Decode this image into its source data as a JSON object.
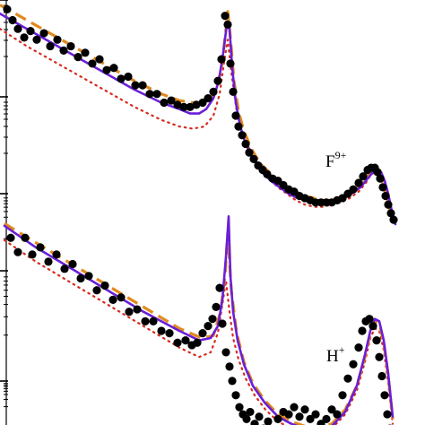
{
  "chart_data": [
    {
      "type": "line",
      "title": "",
      "xlabel": "",
      "ylabel": "",
      "yscale": "log",
      "xlim": [
        0,
        474
      ],
      "ylim": [
        0,
        100
      ],
      "grid": false,
      "annotations": [
        {
          "text": "F",
          "sup": "9+"
        }
      ],
      "series": [
        {
          "style": "dots",
          "color": "#000000",
          "x": [
            8,
            14,
            20,
            27,
            34,
            41,
            49,
            56,
            64,
            71,
            79,
            87,
            95,
            103,
            111,
            119,
            127,
            135,
            143,
            151,
            159,
            167,
            175,
            183,
            191,
            198,
            205,
            212,
            219,
            226,
            232,
            238,
            243,
            247,
            251,
            254,
            257,
            260,
            263,
            266,
            270,
            274,
            278,
            283,
            288,
            293,
            298,
            304,
            310,
            316,
            322,
            328,
            334,
            340,
            346,
            352,
            358,
            364,
            370,
            376,
            382,
            388,
            394,
            400,
            405,
            410,
            414,
            418,
            421,
            424,
            427,
            430,
            433,
            436,
            439
          ],
          "y": [
            99,
            94,
            90,
            86,
            89,
            85,
            88,
            82,
            85,
            80,
            82,
            77,
            79,
            74,
            76,
            71,
            72,
            67,
            68,
            64,
            64,
            60,
            60,
            56,
            57,
            55,
            54,
            54,
            55,
            56,
            58,
            61,
            66,
            76,
            96,
            92,
            74,
            61,
            50,
            45,
            41,
            37,
            33,
            30,
            27,
            25,
            23,
            21,
            20,
            18,
            16,
            15,
            13,
            12,
            11,
            10,
            10,
            10,
            10,
            11,
            12,
            14,
            16,
            19,
            22,
            25,
            26,
            26,
            24,
            21,
            17,
            13,
            9,
            5,
            2
          ]
        },
        {
          "style": "dashed",
          "color": "#e08a1e",
          "x": [
            0,
            30,
            60,
            90,
            120,
            150,
            180,
            200,
            215,
            225,
            235,
            242,
            247,
            251,
            254,
            257,
            261,
            266,
            272,
            280,
            290,
            300,
            310,
            320,
            330,
            340,
            350,
            360,
            370,
            380,
            390,
            400,
            408,
            414,
            419,
            424,
            429,
            434,
            439
          ],
          "y": [
            101,
            94,
            87,
            80,
            73,
            66,
            60,
            57,
            56,
            56,
            58,
            63,
            72,
            86,
            98,
            86,
            66,
            52,
            43,
            35,
            28,
            24,
            20,
            17,
            15,
            13,
            12,
            11,
            11,
            12,
            14,
            17,
            21,
            25,
            26,
            23,
            16,
            8,
            1
          ]
        },
        {
          "style": "solid",
          "color": "#6a1fd8",
          "x": [
            0,
            30,
            60,
            90,
            120,
            150,
            180,
            200,
            212,
            222,
            230,
            238,
            244,
            249,
            253,
            256,
            259,
            263,
            268,
            274,
            282,
            292,
            302,
            312,
            322,
            332,
            342,
            352,
            362,
            372,
            382,
            392,
            402,
            410,
            416,
            421,
            425,
            429,
            433,
            437,
            441
          ],
          "y": [
            97,
            90,
            83,
            76,
            69,
            62,
            56,
            53,
            51,
            51,
            53,
            58,
            66,
            79,
            92,
            90,
            72,
            56,
            45,
            37,
            30,
            24,
            20,
            17,
            14,
            12,
            11,
            10,
            10,
            11,
            12,
            14,
            17,
            21,
            24,
            25,
            24,
            20,
            14,
            6,
            0
          ]
        },
        {
          "style": "dotted",
          "color": "#d62a1e",
          "x": [
            0,
            30,
            60,
            90,
            120,
            150,
            180,
            200,
            215,
            228,
            238,
            245,
            250,
            254,
            258,
            264,
            270,
            280,
            290,
            300,
            310,
            320,
            330,
            340,
            350,
            360,
            370,
            380,
            390,
            400,
            408,
            414,
            419,
            424,
            429,
            434,
            439
          ],
          "y": [
            90,
            82,
            75,
            68,
            61,
            54,
            48,
            45,
            44,
            45,
            50,
            60,
            75,
            85,
            70,
            52,
            42,
            33,
            26,
            21,
            17,
            14,
            11,
            9,
            8,
            8,
            9,
            10,
            12,
            15,
            19,
            23,
            24,
            21,
            15,
            8,
            1
          ]
        }
      ]
    },
    {
      "type": "line",
      "title": "",
      "xlabel": "",
      "ylabel": "",
      "yscale": "log",
      "xlim": [
        0,
        474
      ],
      "ylim": [
        0,
        100
      ],
      "grid": false,
      "annotations": [
        {
          "text": "H",
          "sup": "+"
        }
      ],
      "series": [
        {
          "style": "dots",
          "color": "#000000",
          "x": [
            12,
            20,
            28,
            36,
            45,
            54,
            63,
            72,
            81,
            90,
            99,
            108,
            117,
            126,
            135,
            144,
            153,
            162,
            171,
            180,
            189,
            198,
            207,
            214,
            220,
            226,
            232,
            237,
            241,
            245,
            248,
            252,
            256,
            259,
            263,
            267,
            271,
            275,
            279,
            284,
            289,
            294,
            299,
            304,
            310,
            316,
            322,
            328,
            334,
            340,
            346,
            352,
            358,
            364,
            370,
            376,
            382,
            388,
            394,
            400,
            404,
            408,
            412,
            416,
            420,
            423,
            426,
            429,
            432,
            435,
            438
          ],
          "y": [
            86,
            80,
            86,
            79,
            82,
            76,
            79,
            73,
            75,
            69,
            70,
            64,
            66,
            60,
            61,
            55,
            56,
            51,
            51,
            47,
            46,
            42,
            43,
            41,
            42,
            46,
            49,
            52,
            57,
            65,
            50,
            38,
            32,
            26,
            20,
            15,
            12,
            10,
            13,
            8,
            11,
            6,
            9,
            5,
            10,
            13,
            12,
            15,
            11,
            14,
            10,
            12,
            8,
            10,
            14,
            12,
            20,
            27,
            33,
            40,
            47,
            51,
            52,
            49,
            43,
            36,
            28,
            20,
            12,
            6,
            2
          ]
        },
        {
          "style": "dashed",
          "color": "#e08a1e",
          "x": [
            5,
            40,
            80,
            120,
            160,
            200,
            225,
            238,
            246,
            251,
            254,
            258,
            264,
            272,
            282,
            295,
            310,
            325,
            340,
            355,
            370,
            385,
            398,
            407,
            413,
            418,
            423,
            428,
            433,
            438
          ],
          "y": [
            92,
            84,
            75,
            66,
            57,
            48,
            44,
            45,
            55,
            70,
            88,
            64,
            46,
            34,
            25,
            18,
            12,
            9,
            7,
            6,
            8,
            14,
            24,
            36,
            46,
            51,
            50,
            42,
            28,
            10
          ]
        },
        {
          "style": "solid",
          "color": "#6a1fd8",
          "x": [
            5,
            40,
            80,
            120,
            160,
            200,
            222,
            235,
            243,
            248,
            252,
            255,
            257,
            260,
            265,
            272,
            282,
            295,
            310,
            325,
            340,
            355,
            370,
            385,
            398,
            407,
            413,
            418,
            423,
            428,
            433,
            438
          ],
          "y": [
            91,
            82,
            73,
            64,
            55,
            47,
            43,
            44,
            49,
            60,
            78,
            95,
            70,
            55,
            43,
            33,
            24,
            17,
            11,
            8,
            6,
            5,
            7,
            13,
            24,
            37,
            47,
            52,
            51,
            43,
            29,
            11
          ]
        },
        {
          "style": "dotted",
          "color": "#d62a1e",
          "x": [
            5,
            40,
            80,
            120,
            160,
            200,
            222,
            235,
            243,
            248,
            252,
            256,
            260,
            266,
            274,
            284,
            296,
            310,
            325,
            340,
            355,
            370,
            385,
            398,
            407,
            413,
            418,
            423,
            428,
            433,
            438
          ],
          "y": [
            85,
            76,
            67,
            58,
            49,
            40,
            36,
            38,
            46,
            58,
            68,
            55,
            44,
            35,
            27,
            20,
            14,
            9,
            6,
            5,
            4,
            6,
            12,
            22,
            34,
            44,
            48,
            47,
            39,
            25,
            8
          ]
        }
      ]
    }
  ],
  "palette": {
    "dots": "#000000",
    "dashed": "#e08a1e",
    "solid": "#6a1fd8",
    "dotted": "#d62a1e"
  }
}
